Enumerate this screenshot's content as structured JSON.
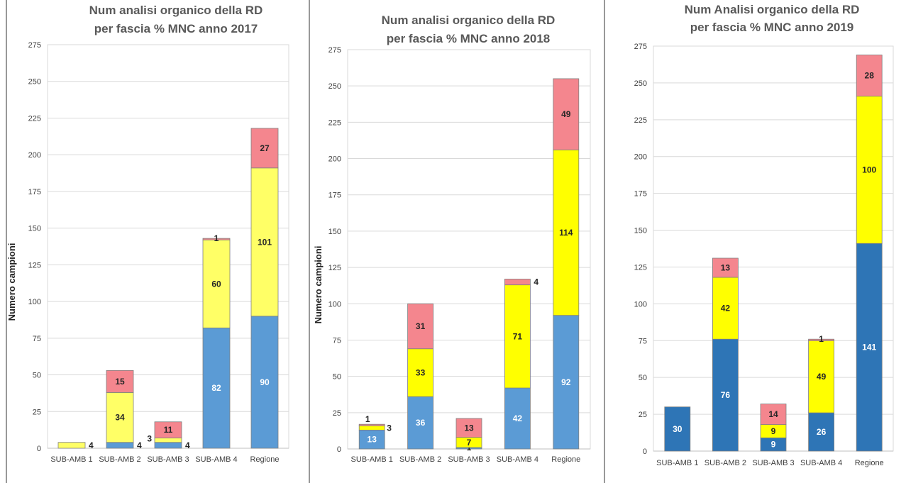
{
  "chart_data": [
    {
      "type": "bar",
      "stacked": true,
      "title": [
        "Num analisi organico della RD",
        "per fascia % MNC anno 2017"
      ],
      "ylabel": "Numero campioni",
      "ylim": [
        0,
        275
      ],
      "yticks": [
        0,
        25,
        50,
        75,
        100,
        125,
        150,
        175,
        200,
        225,
        250,
        275
      ],
      "grid": true,
      "legend": "none",
      "categories": [
        "SUB-AMB 1",
        "SUB-AMB 2",
        "SUB-AMB 3",
        "SUB-AMB 4",
        "Regione"
      ],
      "series": [
        {
          "color": "#5b9bd5",
          "values": [
            0,
            4,
            4,
            82,
            90
          ],
          "labels": [
            "",
            "4",
            "4",
            "82",
            "90"
          ]
        },
        {
          "color": "#ffff66",
          "values": [
            4,
            34,
            3,
            60,
            101
          ],
          "labels": [
            "4",
            "34",
            "3",
            "60",
            "101"
          ]
        },
        {
          "color": "#f4868e",
          "values": [
            0,
            15,
            11,
            1,
            27
          ],
          "labels": [
            "",
            "15",
            "11",
            "1",
            "27"
          ]
        }
      ]
    },
    {
      "type": "bar",
      "stacked": true,
      "title": [
        "Num analisi organico della RD",
        "per fascia % MNC anno 2018"
      ],
      "ylabel": "Numero campioni",
      "ylim": [
        0,
        275
      ],
      "yticks": [
        0,
        25,
        50,
        75,
        100,
        125,
        150,
        175,
        200,
        225,
        250,
        275
      ],
      "grid": true,
      "legend": "none",
      "categories": [
        "SUB-AMB 1",
        "SUB-AMB 2",
        "SUB-AMB 3",
        "SUB-AMB 4",
        "Regione"
      ],
      "series": [
        {
          "color": "#5b9bd5",
          "values": [
            13,
            36,
            1,
            42,
            92
          ],
          "labels": [
            "13",
            "36",
            "1",
            "42",
            "92"
          ]
        },
        {
          "color": "#ffff00",
          "values": [
            3,
            33,
            7,
            71,
            114
          ],
          "labels": [
            "3",
            "33",
            "7",
            "71",
            "114"
          ]
        },
        {
          "color": "#f4868e",
          "values": [
            1,
            31,
            13,
            4,
            49
          ],
          "labels": [
            "1",
            "31",
            "13",
            "4",
            "49"
          ]
        }
      ]
    },
    {
      "type": "bar",
      "stacked": true,
      "title": [
        "Num Analisi organico della RD",
        "per fascia % MNC anno 2019"
      ],
      "ylabel": "",
      "ylim": [
        0,
        275
      ],
      "yticks": [
        0,
        25,
        50,
        75,
        100,
        125,
        150,
        175,
        200,
        225,
        250,
        275
      ],
      "grid": true,
      "legend": "none",
      "categories": [
        "SUB-AMB 1",
        "SUB-AMB 2",
        "SUB-AMB 3",
        "SUB-AMB 4",
        "Regione"
      ],
      "series": [
        {
          "color": "#2e75b6",
          "values": [
            30,
            76,
            9,
            26,
            141
          ],
          "labels": [
            "30",
            "76",
            "9",
            "26",
            "141"
          ]
        },
        {
          "color": "#ffff00",
          "values": [
            0,
            42,
            9,
            49,
            100
          ],
          "labels": [
            "",
            "42",
            "9",
            "49",
            "100"
          ]
        },
        {
          "color": "#f4868e",
          "values": [
            0,
            13,
            14,
            1,
            28
          ],
          "labels": [
            "",
            "13",
            "14",
            "1",
            "28"
          ]
        }
      ]
    }
  ]
}
